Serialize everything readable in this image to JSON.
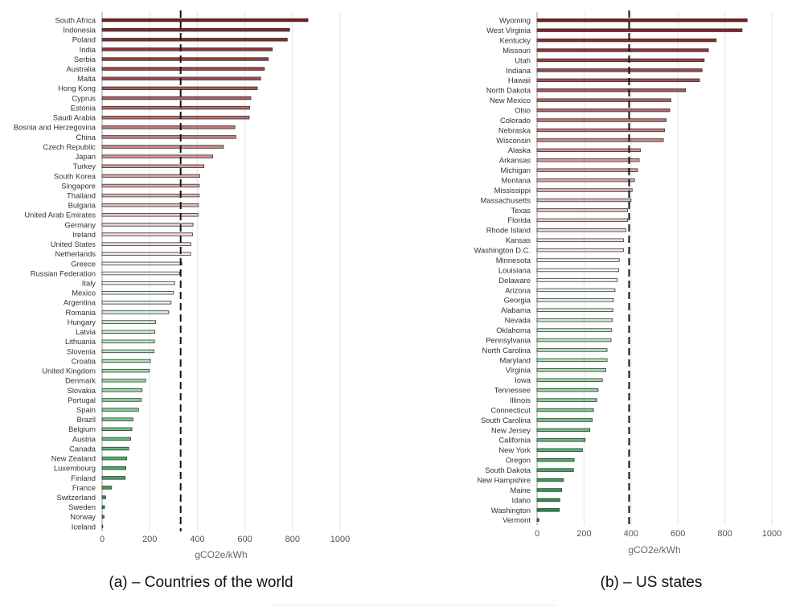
{
  "chart_data": [
    {
      "type": "bar",
      "orientation": "horizontal",
      "caption": "(a)  – Countries of the world",
      "xlabel": "gCO2e/kWh",
      "xlim": [
        0,
        1000
      ],
      "xticks": [
        0,
        200,
        400,
        600,
        800,
        1000
      ],
      "grid": true,
      "reference_line": {
        "value": 330,
        "style": "dashed"
      },
      "categories": [
        "South Africa",
        "Indonesia",
        "Poland",
        "India",
        "Serbia",
        "Australia",
        "Malta",
        "Hong Kong",
        "Cyprus",
        "Estonia",
        "Saudi Arabia",
        "Bosnia and Herzegovina",
        "China",
        "Czech Republic",
        "Japan",
        "Turkey",
        "South Korea",
        "Singapore",
        "Thailand",
        "Bulgaria",
        "United Arab Emirates",
        "Germany",
        "Ireland",
        "United States",
        "Netherlands",
        "Greece",
        "Russian Federation",
        "Italy",
        "Mexico",
        "Argentina",
        "Romania",
        "Hungary",
        "Latvia",
        "Lithuania",
        "Slovenia",
        "Croatia",
        "United Kingdom",
        "Denmark",
        "Slovakia",
        "Portugal",
        "Spain",
        "Brazil",
        "Belgium",
        "Austria",
        "Canada",
        "New Zealand",
        "Luxembourg",
        "Finland",
        "France",
        "Switzerland",
        "Sweden",
        "Norway",
        "Iceland"
      ],
      "values": [
        865,
        788,
        778,
        715,
        698,
        682,
        666,
        652,
        625,
        620,
        618,
        558,
        562,
        510,
        465,
        428,
        410,
        408,
        408,
        405,
        403,
        382,
        380,
        373,
        372,
        335,
        325,
        305,
        300,
        290,
        280,
        225,
        222,
        220,
        218,
        203,
        198,
        183,
        168,
        165,
        153,
        130,
        125,
        120,
        112,
        103,
        100,
        97,
        40,
        15,
        10,
        8,
        1
      ]
    },
    {
      "type": "bar",
      "orientation": "horizontal",
      "caption": "(b)  – US states",
      "xlabel": "gCO2e/kWh",
      "xlim": [
        0,
        1000
      ],
      "xticks": [
        0,
        200,
        400,
        600,
        800,
        1000
      ],
      "grid": true,
      "reference_line": {
        "value": 392,
        "style": "dashed"
      },
      "categories": [
        "Wyoming",
        "West Virginia",
        "Kentucky",
        "Missouri",
        "Utah",
        "Indiana",
        "Hawaii",
        "North Dakota",
        "New Mexico",
        "Ohio",
        "Colorado",
        "Nebraska",
        "Wisconsin",
        "Alaska",
        "Arkansas",
        "Michigan",
        "Montana",
        "Mississippi",
        "Massachusetts",
        "Texas",
        "Florida",
        "Rhode Island",
        "Kansas",
        "Washington D.C.",
        "Minnesota",
        "Louisiana",
        "Delaware",
        "Arizona",
        "Georgia",
        "Alabama",
        "Nevada",
        "Oklahoma",
        "Pennsylvania",
        "North Carolina",
        "Maryland",
        "Virginia",
        "Iowa",
        "Tennessee",
        "Illinois",
        "Connecticut",
        "South Carolina",
        "New Jersey",
        "California",
        "New York",
        "Oregon",
        "South Dakota",
        "New Hampshire",
        "Maine",
        "Idaho",
        "Washington",
        "Vermont"
      ],
      "values": [
        895,
        873,
        763,
        730,
        712,
        703,
        692,
        632,
        570,
        565,
        550,
        543,
        538,
        440,
        435,
        428,
        415,
        405,
        400,
        385,
        385,
        378,
        368,
        368,
        350,
        348,
        342,
        332,
        325,
        323,
        320,
        318,
        315,
        298,
        298,
        293,
        278,
        260,
        255,
        240,
        235,
        225,
        205,
        193,
        158,
        155,
        112,
        105,
        97,
        95,
        8
      ]
    }
  ]
}
